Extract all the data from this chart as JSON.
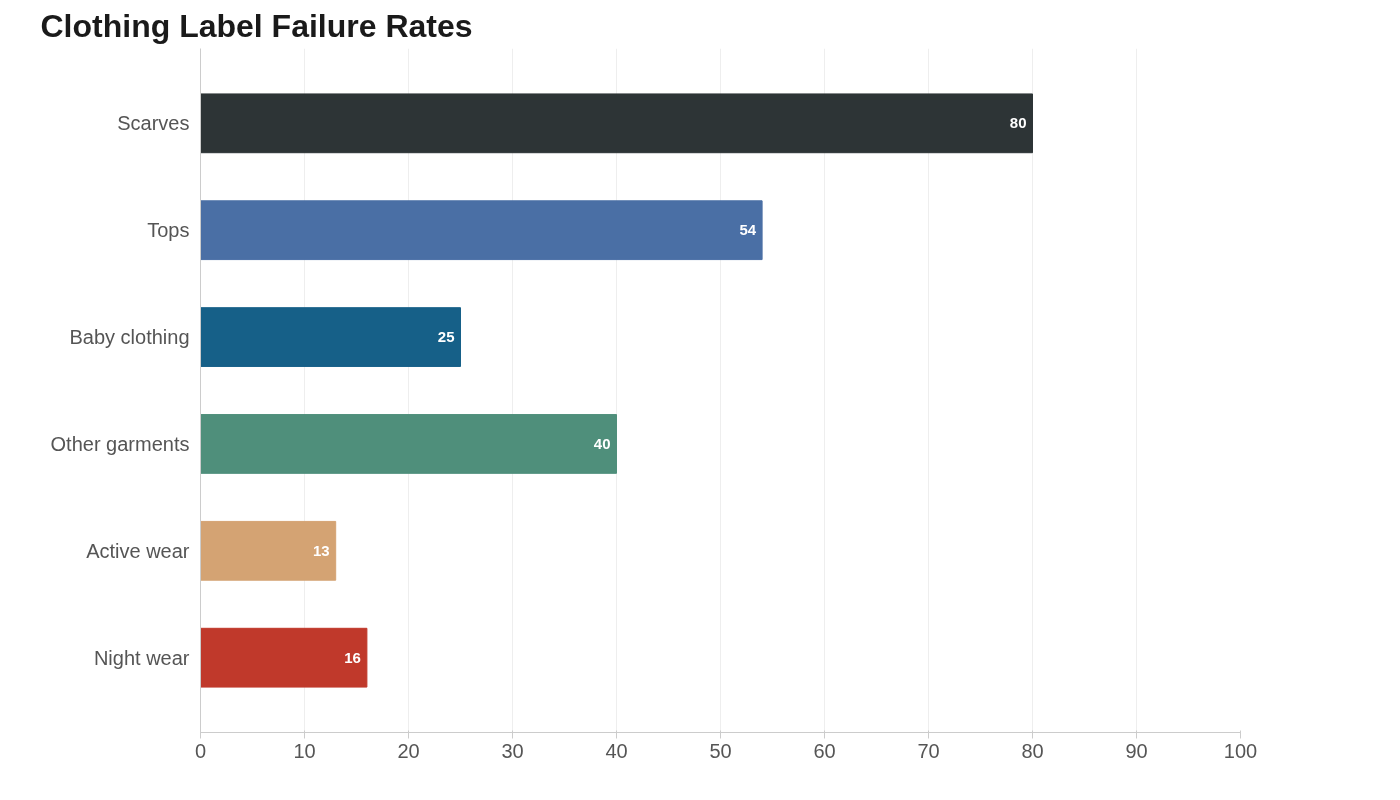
{
  "chart_data": {
    "type": "bar",
    "orientation": "horizontal",
    "title": "Clothing Label Failure Rates",
    "categories": [
      "Scarves",
      "Tops",
      "Baby clothing",
      "Other garments",
      "Active wear",
      "Night wear"
    ],
    "values": [
      80,
      54,
      25,
      40,
      13,
      16
    ],
    "colors": [
      "#2d3436",
      "#4a6fa5",
      "#166088",
      "#4f8f7b",
      "#d4a373",
      "#c0392b"
    ],
    "xlim": [
      0,
      100
    ],
    "xticks": [
      0,
      10,
      20,
      30,
      40,
      50,
      60,
      70,
      80,
      90,
      100
    ],
    "grid": "x",
    "data_labels": true
  }
}
